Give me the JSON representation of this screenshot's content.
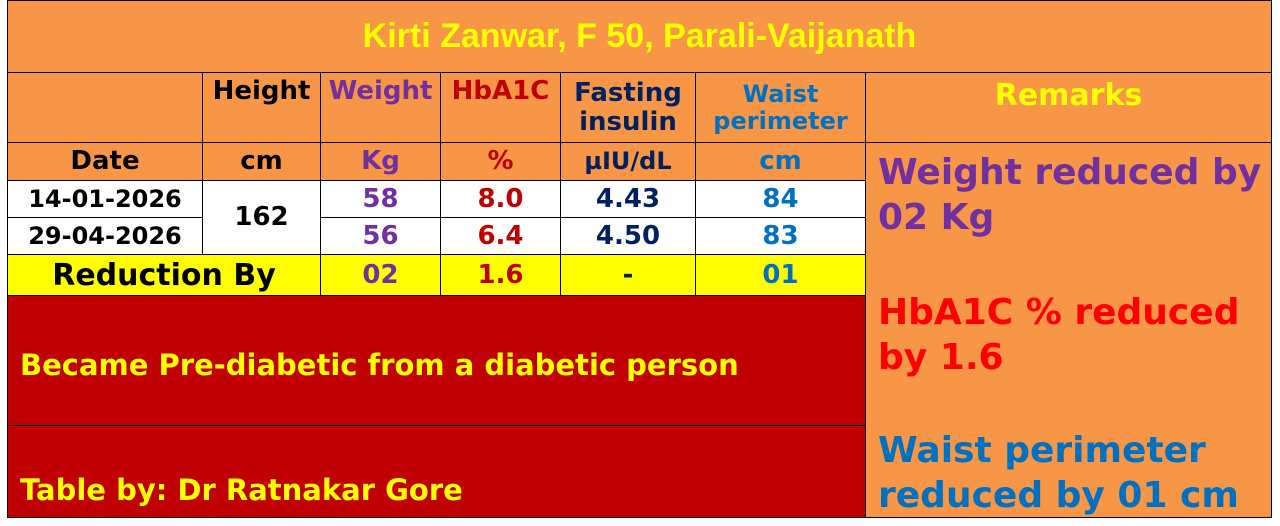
{
  "title": "Kirti Zanwar, F 50, Parali-Vaijanath",
  "table": {
    "headers": [
      "Height",
      "Weight",
      "HbA1C",
      "Fasting insulin",
      "Waist perimeter"
    ],
    "units": [
      "Date",
      "cm",
      "Kg",
      "%",
      "µIU/dL",
      "cm"
    ],
    "height": "162",
    "rows": [
      {
        "date": "14-01-2026",
        "values": [
          "58",
          "8.0",
          "4.43",
          "84"
        ]
      },
      {
        "date": "29-04-2026",
        "values": [
          "56",
          "6.4",
          "4.50",
          "83"
        ]
      }
    ],
    "reduction": {
      "label": "Reduction By",
      "values": [
        "02",
        "1.6",
        "-",
        "01"
      ]
    }
  },
  "notes": [
    "Became Pre-diabetic from a diabetic person",
    "Table by: Dr Ratnakar Gore"
  ],
  "remarks": {
    "title": "Remarks",
    "items": [
      "Weight reduced by 02 Kg",
      "HbA1C % reduced by 1.6",
      "Waist perimeter reduced by 01 cm"
    ]
  }
}
